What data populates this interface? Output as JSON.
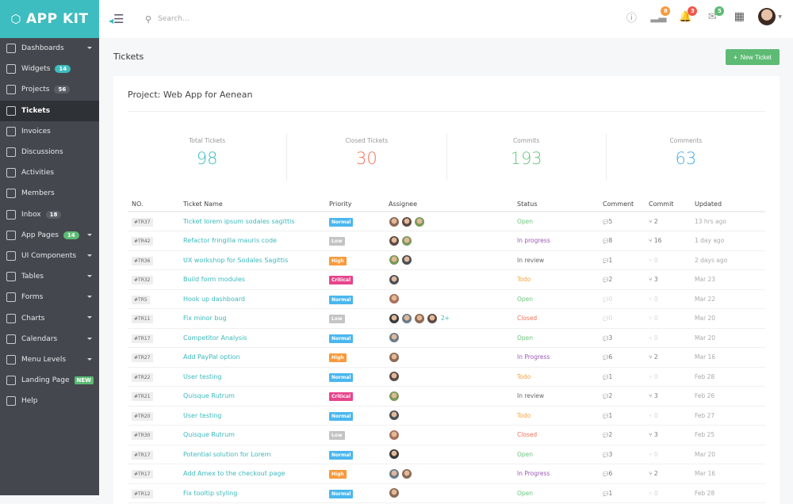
{
  "brand": {
    "name": "APP KIT",
    "color": "#3dbdbf"
  },
  "sidebar": {
    "items": [
      {
        "label": "Dashboards",
        "icon": "home-icon",
        "caret": true
      },
      {
        "label": "Widgets",
        "icon": "inbox-tray-icon",
        "badge": "14",
        "badge_color": "#3dbdbf"
      },
      {
        "label": "Projects",
        "icon": "briefcase-icon",
        "badge": "56",
        "badge_color": "#5a5f66"
      },
      {
        "label": "Tickets",
        "icon": "checkbox-icon",
        "active": true
      },
      {
        "label": "Invoices",
        "icon": "document-icon"
      },
      {
        "label": "Discussions",
        "icon": "chat-icon"
      },
      {
        "label": "Activities",
        "icon": "activity-icon"
      },
      {
        "label": "Members",
        "icon": "users-icon"
      },
      {
        "label": "Inbox",
        "icon": "mail-icon",
        "badge": "18",
        "badge_color": "#5a5f66"
      },
      {
        "label": "App Pages",
        "icon": "pages-icon",
        "badge": "14",
        "badge_color": "#5dbb74",
        "caret": true
      },
      {
        "label": "UI Components",
        "icon": "components-icon",
        "caret": true
      },
      {
        "label": "Tables",
        "icon": "table-icon",
        "caret": true
      },
      {
        "label": "Forms",
        "icon": "form-icon",
        "caret": true
      },
      {
        "label": "Charts",
        "icon": "pie-chart-icon",
        "caret": true
      },
      {
        "label": "Calendars",
        "icon": "calendar-icon",
        "caret": true
      },
      {
        "label": "Menu Levels",
        "icon": "sitemap-icon",
        "caret": true
      },
      {
        "label": "Landing Page",
        "icon": "heart-icon",
        "badge": "NEW",
        "badge_color": "#5dbb74"
      },
      {
        "label": "Help",
        "icon": "lifebuoy-icon"
      }
    ]
  },
  "topbar": {
    "search_placeholder": "Search...",
    "signal_count": "8",
    "notification_count": "3",
    "message_count": "5"
  },
  "page": {
    "title": "Tickets",
    "new_button": "New Ticket"
  },
  "project": {
    "title": "Project: Web App for Aenean"
  },
  "stats": [
    {
      "label": "Total Tickets",
      "value": "98",
      "color": "#3dbdbf"
    },
    {
      "label": "Closed Tickets",
      "value": "30",
      "color": "#f0735a"
    },
    {
      "label": "Commits",
      "value": "193",
      "color": "#6cc47f"
    },
    {
      "label": "Comments",
      "value": "63",
      "color": "#4ab0e0"
    }
  ],
  "priority_colors": {
    "Normal": "#4ab7ee",
    "Low": "#c4c4c4",
    "High": "#f89a3c",
    "Critical": "#e7458c"
  },
  "status_colors": {
    "Open": "#6cc47f",
    "In progress": "#9b59b6",
    "In Progress": "#9b59b6",
    "In review": "#666666",
    "Todo": "#f8a23c",
    "Closed": "#f0735a"
  },
  "table": {
    "headers": [
      "NO.",
      "Ticket Name",
      "Priority",
      "Assignee",
      "Status",
      "Comment",
      "Commit",
      "Updated"
    ],
    "rows": [
      {
        "no": "#TR37",
        "name": "Ticket lorem ipsum sodales sagittis",
        "priority": "Normal",
        "assignees": 3,
        "more": "",
        "status": "Open",
        "comments": "5",
        "commits": "2",
        "updated": "13 hrs ago"
      },
      {
        "no": "#TR42",
        "name": "Refactor fringilla mauris code",
        "priority": "Low",
        "assignees": 2,
        "more": "",
        "status": "In progress",
        "comments": "8",
        "commits": "16",
        "updated": "1 day ago"
      },
      {
        "no": "#TR36",
        "name": "UX workshop for Sodales Sagittis",
        "priority": "High",
        "assignees": 2,
        "more": "",
        "status": "In review",
        "comments": "1",
        "commits": "0",
        "updated": "2 days ago"
      },
      {
        "no": "#TR32",
        "name": "Build form modules",
        "priority": "Critical",
        "assignees": 1,
        "more": "",
        "status": "Todo",
        "comments": "2",
        "commits": "3",
        "updated": "Mar 23"
      },
      {
        "no": "#TR5",
        "name": "Hook up dashboard",
        "priority": "Normal",
        "assignees": 1,
        "more": "",
        "status": "Open",
        "comments": "0",
        "commits": "0",
        "updated": "Mar 22"
      },
      {
        "no": "#TR11",
        "name": "Fix minor bug",
        "priority": "Low",
        "assignees": 4,
        "more": "2+",
        "status": "Closed",
        "comments": "0",
        "commits": "0",
        "updated": "Mar 20"
      },
      {
        "no": "#TR17",
        "name": "Competitor Analysis",
        "priority": "Normal",
        "assignees": 1,
        "more": "",
        "status": "Open",
        "comments": "3",
        "commits": "0",
        "updated": "Mar 20"
      },
      {
        "no": "#TR27",
        "name": "Add PayPal option",
        "priority": "High",
        "assignees": 1,
        "more": "",
        "status": "In Progress",
        "comments": "6",
        "commits": "2",
        "updated": "Mar 16"
      },
      {
        "no": "#TR22",
        "name": "User testing",
        "priority": "Normal",
        "assignees": 1,
        "more": "",
        "status": "Todo",
        "comments": "1",
        "commits": "0",
        "updated": "Feb 28"
      },
      {
        "no": "#TR21",
        "name": "Quisque Rutrum",
        "priority": "Critical",
        "assignees": 1,
        "more": "",
        "status": "In review",
        "comments": "2",
        "commits": "3",
        "updated": "Feb 26"
      },
      {
        "no": "#TR20",
        "name": "User testing",
        "priority": "Normal",
        "assignees": 1,
        "more": "",
        "status": "Todo",
        "comments": "1",
        "commits": "0",
        "updated": "Feb 27"
      },
      {
        "no": "#TR30",
        "name": "Quisque Rutrum",
        "priority": "Low",
        "assignees": 1,
        "more": "",
        "status": "Closed",
        "comments": "2",
        "commits": "3",
        "updated": "Feb 25"
      },
      {
        "no": "#TR17",
        "name": "Potential solution for Lorem",
        "priority": "Normal",
        "assignees": 1,
        "more": "",
        "status": "Open",
        "comments": "3",
        "commits": "0",
        "updated": "Mar 20"
      },
      {
        "no": "#TR17",
        "name": "Add Amex to the checkout page",
        "priority": "High",
        "assignees": 2,
        "more": "",
        "status": "In Progress",
        "comments": "6",
        "commits": "2",
        "updated": "Mar 16"
      },
      {
        "no": "#TR12",
        "name": "Fix tooltip styling",
        "priority": "Normal",
        "assignees": 1,
        "more": "",
        "status": "Open",
        "comments": "1",
        "commits": "0",
        "updated": "Feb 28"
      }
    ]
  }
}
